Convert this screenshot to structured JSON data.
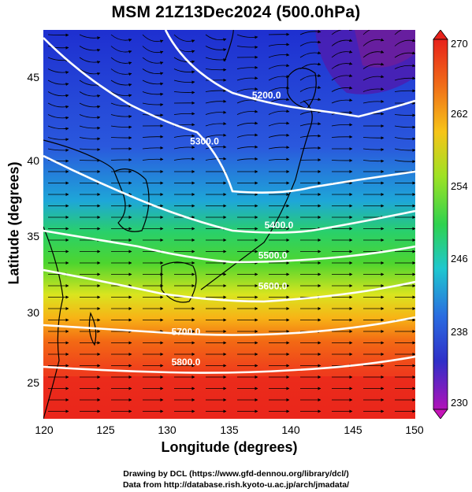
{
  "figure": {
    "title": "MSM 21Z13Dec2024 (500.0hPa)",
    "xlabel": "Longitude (degrees)",
    "ylabel": "Latitude  (degrees)",
    "x_ticks": [
      "120",
      "125",
      "130",
      "135",
      "140",
      "145",
      "150"
    ],
    "y_ticks": [
      "25",
      "30",
      "35",
      "40",
      "45"
    ],
    "colorbar_ticks": [
      "270",
      "262",
      "254",
      "246",
      "238",
      "230"
    ],
    "credit_line1": "Drawing by DCL (https://www.gfd-dennou.org/library/dcl/)",
    "credit_line2": "Data from http://database.rish.kyoto-u.ac.jp/arch/jmadata/"
  },
  "chart_data": {
    "type": "heatmap",
    "title": "MSM 21Z13Dec2024 (500.0hPa)",
    "xlabel": "Longitude (degrees)",
    "ylabel": "Latitude  (degrees)",
    "xlim": [
      120,
      150
    ],
    "ylim": [
      22.5,
      48
    ],
    "color_variable_range": [
      230,
      270
    ],
    "colorbar_ticks": [
      270,
      262,
      254,
      246,
      238,
      230
    ],
    "contour_labels": [
      {
        "value": "5200.0",
        "lon": 138,
        "lat": 43.5
      },
      {
        "value": "5300.0",
        "lon": 133,
        "lat": 40.5
      },
      {
        "value": "5400.0",
        "lon": 139,
        "lat": 35.0
      },
      {
        "value": "5500.0",
        "lon": 138.5,
        "lat": 33.0
      },
      {
        "value": "5600.0",
        "lon": 138.5,
        "lat": 31.0
      },
      {
        "value": "5700.0",
        "lon": 131.5,
        "lat": 28.0
      },
      {
        "value": "5800.0",
        "lon": 131.5,
        "lat": 26.0
      }
    ],
    "overlays": [
      "streamlines with arrows (wind)",
      "coastlines"
    ]
  }
}
